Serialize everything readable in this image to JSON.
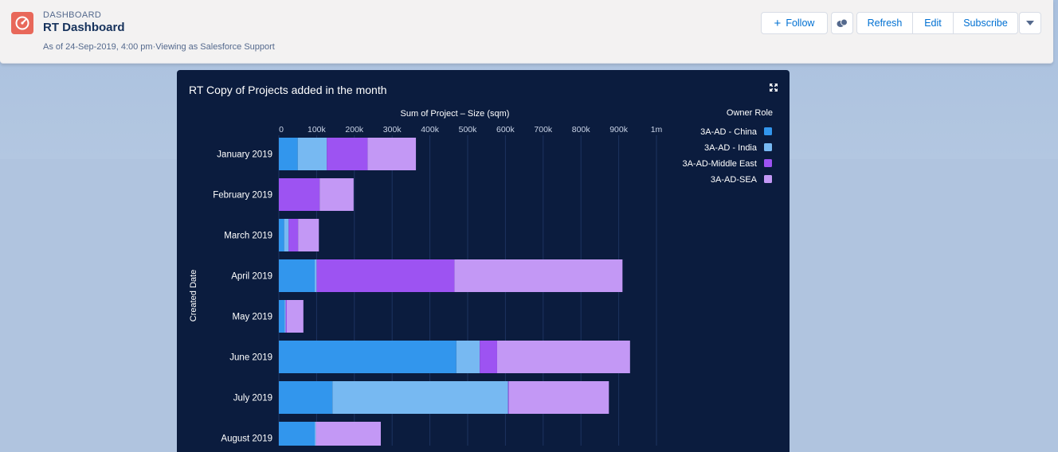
{
  "header": {
    "eyebrow": "DASHBOARD",
    "title": "RT Dashboard",
    "subtitle": "As of 24-Sep-2019, 4:00 pm·Viewing as Salesforce Support",
    "buttons": {
      "follow": "Follow",
      "refresh": "Refresh",
      "edit": "Edit",
      "subscribe": "Subscribe"
    }
  },
  "card": {
    "title": "RT Copy of Projects added in the month"
  },
  "chart_data": {
    "type": "bar",
    "orientation": "horizontal",
    "stacked": true,
    "title": "RT Copy of Projects added in the month",
    "xlabel": "Sum of Project – Size (sqm)",
    "ylabel": "Created Date",
    "xlim": [
      0,
      1000000
    ],
    "xticks": [
      0,
      100000,
      200000,
      300000,
      400000,
      500000,
      600000,
      700000,
      800000,
      900000,
      1000000
    ],
    "xtick_labels": [
      "0",
      "100k",
      "200k",
      "300k",
      "400k",
      "500k",
      "600k",
      "700k",
      "800k",
      "900k",
      "1m"
    ],
    "legend_title": "Owner Role",
    "legend_position": "top-right",
    "categories": [
      "January 2019",
      "February 2019",
      "March 2019",
      "April 2019",
      "May 2019",
      "June 2019",
      "July 2019",
      "August 2019"
    ],
    "series": [
      {
        "name": "3A-AD - China",
        "color": "#3296ed",
        "values": [
          50000,
          0,
          14000,
          95000,
          15000,
          470000,
          142000,
          95000
        ]
      },
      {
        "name": "3A-AD - India",
        "color": "#77b9f2",
        "values": [
          77000,
          0,
          12000,
          5000,
          3000,
          62000,
          465000,
          3000
        ]
      },
      {
        "name": "3A-AD-Middle East",
        "color": "#9d53f2",
        "values": [
          108000,
          108000,
          25000,
          365000,
          3000,
          46000,
          2000,
          0
        ]
      },
      {
        "name": "3A-AD-SEA",
        "color": "#c398f5",
        "values": [
          128000,
          90000,
          55000,
          445000,
          44000,
          352000,
          265000,
          172000
        ]
      }
    ]
  }
}
